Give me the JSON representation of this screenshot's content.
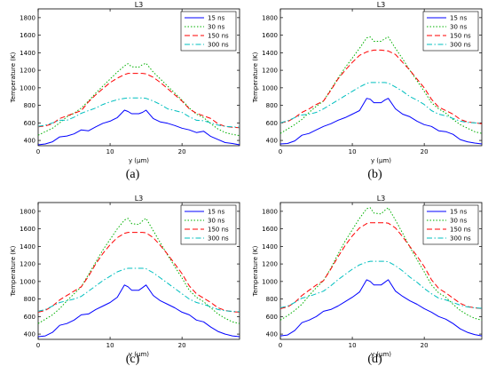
{
  "chart_data": [
    {
      "type": "line",
      "panel_label": "(a)",
      "title": "L3",
      "xlabel": "y (μm)",
      "ylabel": "Temperature (K)",
      "xlim": [
        0,
        28
      ],
      "ylim": [
        340,
        1900
      ],
      "xticks": [
        0,
        10,
        20
      ],
      "yticks": [
        400,
        600,
        800,
        1000,
        1200,
        1400,
        1600,
        1800
      ],
      "grid": false,
      "legend_position": "top-right",
      "x": [
        0,
        1,
        2,
        3,
        4,
        5,
        6,
        7,
        8,
        9,
        10,
        11,
        12,
        12.5,
        13,
        14,
        14.5,
        15,
        16,
        17,
        18,
        19,
        20,
        21,
        22,
        23,
        24,
        25,
        26,
        27,
        28
      ],
      "series": [
        {
          "name": "15 ns",
          "values": [
            350,
            360,
            385,
            440,
            450,
            475,
            520,
            510,
            555,
            595,
            620,
            660,
            745,
            730,
            705,
            705,
            720,
            745,
            650,
            610,
            595,
            570,
            540,
            520,
            490,
            505,
            445,
            410,
            375,
            365,
            350
          ]
        },
        {
          "name": "30 ns",
          "values": [
            460,
            500,
            540,
            600,
            670,
            710,
            770,
            850,
            940,
            1020,
            1100,
            1180,
            1250,
            1275,
            1240,
            1235,
            1265,
            1280,
            1180,
            1100,
            1020,
            940,
            860,
            770,
            700,
            660,
            590,
            530,
            490,
            470,
            455
          ]
        },
        {
          "name": "150 ns",
          "values": [
            555,
            565,
            590,
            650,
            680,
            710,
            740,
            840,
            920,
            990,
            1060,
            1110,
            1150,
            1165,
            1165,
            1165,
            1165,
            1160,
            1120,
            1060,
            990,
            920,
            850,
            760,
            710,
            680,
            650,
            590,
            560,
            550,
            545
          ]
        },
        {
          "name": "300 ns",
          "values": [
            560,
            575,
            600,
            630,
            630,
            665,
            710,
            740,
            770,
            810,
            840,
            865,
            880,
            885,
            885,
            885,
            885,
            880,
            850,
            810,
            760,
            740,
            720,
            670,
            630,
            625,
            600,
            575,
            560,
            555,
            550
          ]
        }
      ]
    },
    {
      "type": "line",
      "panel_label": "(b)",
      "title": "L3",
      "xlabel": "y (μm)",
      "ylabel": "Temperature (K)",
      "xlim": [
        0,
        28
      ],
      "ylim": [
        340,
        1900
      ],
      "xticks": [
        0,
        10,
        20
      ],
      "yticks": [
        400,
        600,
        800,
        1000,
        1200,
        1400,
        1600,
        1800
      ],
      "grid": false,
      "legend_position": "top-right",
      "x": [
        0,
        1,
        2,
        3,
        4,
        5,
        6,
        7,
        8,
        9,
        10,
        11,
        12,
        12.5,
        13,
        14,
        14.5,
        15,
        16,
        17,
        18,
        19,
        20,
        21,
        22,
        23,
        24,
        25,
        26,
        27,
        28
      ],
      "series": [
        {
          "name": "15 ns",
          "values": [
            360,
            365,
            395,
            460,
            480,
            520,
            560,
            590,
            630,
            660,
            700,
            740,
            880,
            870,
            830,
            830,
            860,
            880,
            760,
            700,
            670,
            620,
            580,
            560,
            510,
            500,
            470,
            410,
            385,
            370,
            360
          ]
        },
        {
          "name": "30 ns",
          "values": [
            480,
            530,
            580,
            640,
            720,
            790,
            850,
            980,
            1110,
            1230,
            1340,
            1450,
            1570,
            1580,
            1530,
            1530,
            1560,
            1580,
            1450,
            1330,
            1200,
            1080,
            960,
            830,
            760,
            710,
            640,
            580,
            540,
            500,
            480
          ]
        },
        {
          "name": "150 ns",
          "values": [
            600,
            615,
            660,
            720,
            760,
            810,
            850,
            970,
            1100,
            1200,
            1290,
            1370,
            1410,
            1420,
            1430,
            1430,
            1425,
            1420,
            1380,
            1290,
            1200,
            1100,
            1000,
            870,
            780,
            740,
            700,
            640,
            610,
            600,
            590
          ]
        },
        {
          "name": "300 ns",
          "values": [
            600,
            625,
            660,
            690,
            700,
            720,
            760,
            810,
            860,
            910,
            960,
            1010,
            1050,
            1060,
            1060,
            1060,
            1060,
            1055,
            1010,
            960,
            900,
            860,
            810,
            740,
            700,
            680,
            650,
            620,
            605,
            600,
            595
          ]
        }
      ]
    },
    {
      "type": "line",
      "panel_label": "(c)",
      "title": "L3",
      "xlabel": "y (μm)",
      "ylabel": "Temperature (K)",
      "xlim": [
        0,
        28
      ],
      "ylim": [
        340,
        1900
      ],
      "xticks": [
        0,
        10,
        20
      ],
      "yticks": [
        400,
        600,
        800,
        1000,
        1200,
        1400,
        1600,
        1800
      ],
      "grid": false,
      "legend_position": "top-right",
      "x": [
        0,
        1,
        2,
        3,
        4,
        5,
        6,
        7,
        8,
        9,
        10,
        11,
        12,
        12.5,
        13,
        14,
        14.5,
        15,
        16,
        17,
        18,
        19,
        20,
        21,
        22,
        23,
        24,
        25,
        26,
        27,
        28
      ],
      "series": [
        {
          "name": "15 ns",
          "values": [
            370,
            380,
            420,
            500,
            520,
            560,
            620,
            630,
            680,
            720,
            760,
            820,
            960,
            940,
            900,
            900,
            930,
            960,
            840,
            780,
            740,
            700,
            650,
            620,
            560,
            540,
            480,
            430,
            400,
            380,
            370
          ]
        },
        {
          "name": "30 ns",
          "values": [
            520,
            570,
            620,
            690,
            780,
            860,
            940,
            1080,
            1220,
            1360,
            1480,
            1600,
            1700,
            1720,
            1660,
            1650,
            1690,
            1720,
            1580,
            1440,
            1300,
            1170,
            1040,
            900,
            820,
            770,
            700,
            630,
            580,
            540,
            520
          ]
        },
        {
          "name": "150 ns",
          "values": [
            650,
            670,
            720,
            790,
            840,
            890,
            940,
            1060,
            1200,
            1320,
            1420,
            1500,
            1550,
            1560,
            1560,
            1560,
            1560,
            1555,
            1500,
            1410,
            1310,
            1200,
            1090,
            950,
            860,
            810,
            760,
            700,
            670,
            655,
            650
          ]
        },
        {
          "name": "300 ns",
          "values": [
            660,
            680,
            720,
            760,
            780,
            800,
            830,
            890,
            950,
            1010,
            1060,
            1110,
            1140,
            1150,
            1150,
            1150,
            1150,
            1145,
            1100,
            1040,
            980,
            920,
            860,
            800,
            760,
            740,
            710,
            680,
            665,
            660,
            655
          ]
        }
      ]
    },
    {
      "type": "line",
      "panel_label": "(d)",
      "title": "L3",
      "xlabel": "y (μm)",
      "ylabel": "Temperature (K)",
      "xlim": [
        0,
        28
      ],
      "ylim": [
        340,
        1900
      ],
      "xticks": [
        0,
        10,
        20
      ],
      "yticks": [
        400,
        600,
        800,
        1000,
        1200,
        1400,
        1600,
        1800
      ],
      "grid": false,
      "legend_position": "top-right",
      "x": [
        0,
        1,
        2,
        3,
        4,
        5,
        6,
        7,
        8,
        9,
        10,
        11,
        12,
        12.5,
        13,
        14,
        14.5,
        15,
        16,
        17,
        18,
        19,
        20,
        21,
        22,
        23,
        24,
        25,
        26,
        27,
        28
      ],
      "series": [
        {
          "name": "15 ns",
          "values": [
            380,
            390,
            440,
            530,
            560,
            600,
            660,
            680,
            720,
            770,
            820,
            880,
            1020,
            1000,
            960,
            960,
            990,
            1020,
            890,
            830,
            780,
            740,
            690,
            650,
            600,
            570,
            520,
            460,
            420,
            395,
            380
          ]
        },
        {
          "name": "30 ns",
          "values": [
            560,
            610,
            670,
            740,
            840,
            930,
            1010,
            1150,
            1310,
            1460,
            1590,
            1720,
            1830,
            1840,
            1780,
            1770,
            1810,
            1840,
            1700,
            1550,
            1390,
            1250,
            1110,
            960,
            870,
            820,
            740,
            670,
            620,
            580,
            560
          ]
        },
        {
          "name": "150 ns",
          "values": [
            690,
            710,
            760,
            840,
            900,
            960,
            1010,
            1140,
            1280,
            1410,
            1520,
            1610,
            1660,
            1670,
            1670,
            1670,
            1670,
            1665,
            1610,
            1510,
            1400,
            1290,
            1170,
            1020,
            920,
            870,
            810,
            750,
            715,
            700,
            690
          ]
        },
        {
          "name": "300 ns",
          "values": [
            700,
            720,
            760,
            810,
            830,
            860,
            890,
            950,
            1020,
            1080,
            1140,
            1190,
            1220,
            1230,
            1230,
            1230,
            1230,
            1225,
            1180,
            1120,
            1050,
            990,
            920,
            860,
            810,
            790,
            760,
            730,
            710,
            700,
            695
          ]
        }
      ]
    }
  ],
  "colors": {
    "15 ns": "#0000ff",
    "30 ns": "#00b000",
    "150 ns": "#ff0000",
    "300 ns": "#00bfbf"
  },
  "dash_styles": {
    "15 ns": "solid",
    "30 ns": "dotted",
    "150 ns": "dashed",
    "300 ns": "dash-dot"
  }
}
